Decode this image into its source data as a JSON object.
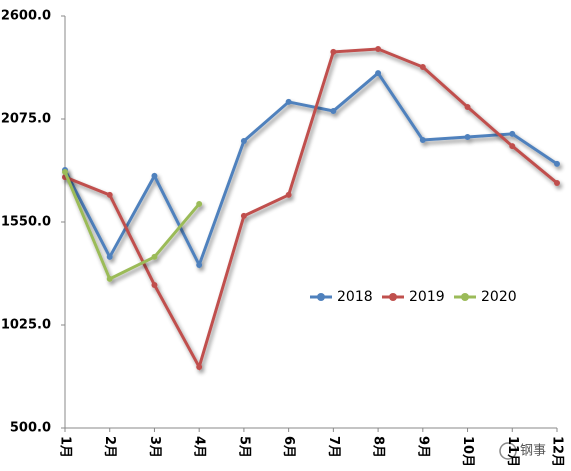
{
  "chart_data": {
    "type": "line",
    "categories": [
      "1月",
      "2月",
      "3月",
      "4月",
      "5月",
      "6月",
      "7月",
      "8月",
      "9月",
      "10月",
      "11月",
      "12月"
    ],
    "series": [
      {
        "name": "2018",
        "color": "#4f81bd",
        "values": [
          1815,
          1372,
          1785,
          1331,
          1963,
          2162,
          2116,
          2309,
          1968,
          1983,
          1999,
          1846
        ]
      },
      {
        "name": "2019",
        "color": "#c0504d",
        "values": [
          1779,
          1688,
          1229,
          811,
          1581,
          1688,
          2417,
          2432,
          2340,
          2136,
          1937,
          1749
        ]
      },
      {
        "name": "2020",
        "color": "#9bbb59",
        "values": [
          1805,
          1260,
          1372,
          1642,
          null,
          null,
          null,
          null,
          null,
          null,
          null,
          null
        ]
      }
    ],
    "ylim": [
      500,
      2600
    ],
    "yticks": [
      {
        "value": 500,
        "label": "500.0"
      },
      {
        "value": 1025,
        "label": "1025.0"
      },
      {
        "value": 1550,
        "label": "1550.0"
      },
      {
        "value": 2075,
        "label": "2075.0"
      },
      {
        "value": 2600,
        "label": "2600.0"
      }
    ],
    "grid": false,
    "legend": "right"
  },
  "watermark": "钢事"
}
